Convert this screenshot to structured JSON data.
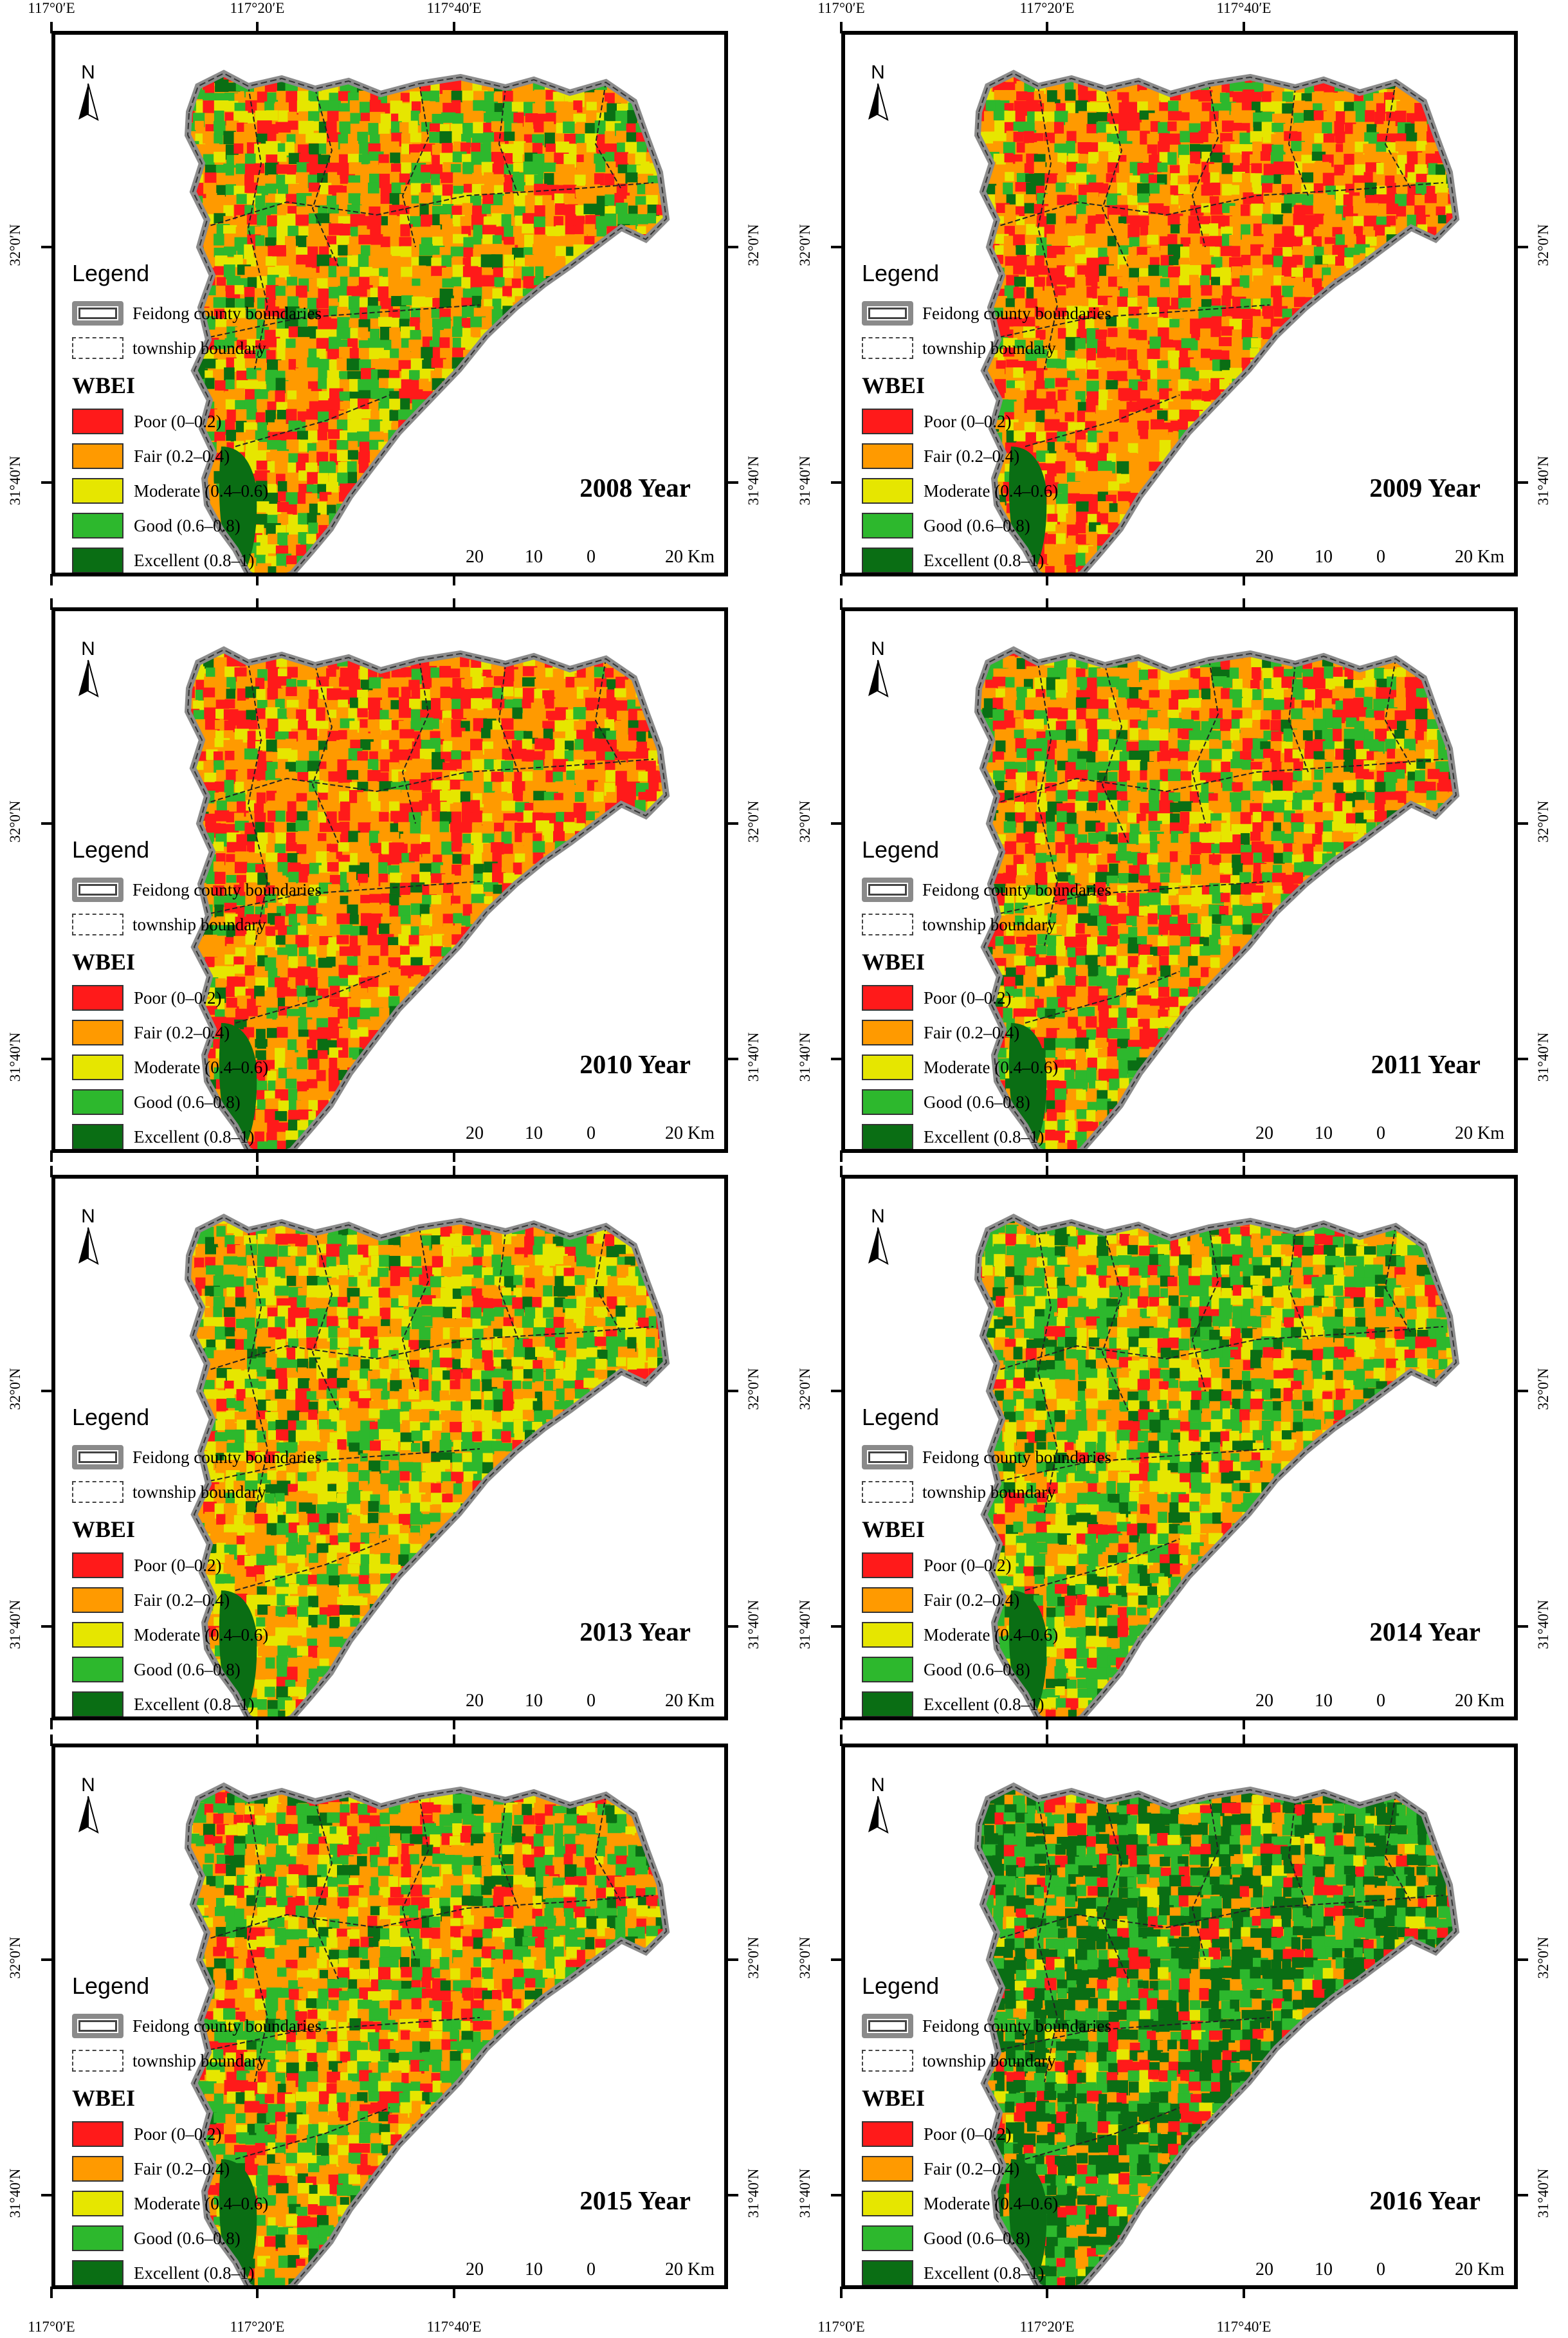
{
  "axes": {
    "top_lon": [
      "117°0′E",
      "117°20′E",
      "117°40′E"
    ],
    "bottom_lon": [
      "117°0′E",
      "117°20′E",
      "117°40′E"
    ],
    "left_lat": [
      "32°0′N",
      "31°40′N"
    ],
    "right_lat": [
      "32°0′N",
      "31°40′N"
    ]
  },
  "legend": {
    "title": "Legend",
    "county": "Feidong county boundaries",
    "township": "township boundary",
    "index_title": "WBEI",
    "classes": [
      {
        "label": "Poor (0–0.2)",
        "color": "#ff1a1a"
      },
      {
        "label": "Fair (0.2–0.4)",
        "color": "#ff9a00"
      },
      {
        "label": "Moderate (0.4–0.6)",
        "color": "#e6e600"
      },
      {
        "label": "Good (0.6–0.8)",
        "color": "#2db82d"
      },
      {
        "label": "Excellent (0.8–1)",
        "color": "#0a6e14"
      }
    ]
  },
  "north_label": "N",
  "scale": {
    "labels": [
      "20",
      "10",
      "0",
      "20 Km"
    ]
  },
  "panels": [
    {
      "year": "2008 Year",
      "mix": {
        "poor": 0.22,
        "fair": 0.3,
        "moderate": 0.18,
        "good": 0.22,
        "excellent": 0.08
      }
    },
    {
      "year": "2009 Year",
      "mix": {
        "poor": 0.3,
        "fair": 0.38,
        "moderate": 0.14,
        "good": 0.12,
        "excellent": 0.06
      }
    },
    {
      "year": "2010 Year",
      "mix": {
        "poor": 0.32,
        "fair": 0.36,
        "moderate": 0.14,
        "good": 0.12,
        "excellent": 0.06
      }
    },
    {
      "year": "2011 Year",
      "mix": {
        "poor": 0.26,
        "fair": 0.26,
        "moderate": 0.16,
        "good": 0.24,
        "excellent": 0.08
      }
    },
    {
      "year": "2013 Year",
      "mix": {
        "poor": 0.12,
        "fair": 0.28,
        "moderate": 0.26,
        "good": 0.26,
        "excellent": 0.08
      }
    },
    {
      "year": "2014 Year",
      "mix": {
        "poor": 0.1,
        "fair": 0.2,
        "moderate": 0.24,
        "good": 0.34,
        "excellent": 0.12
      }
    },
    {
      "year": "2015 Year",
      "mix": {
        "poor": 0.18,
        "fair": 0.26,
        "moderate": 0.16,
        "good": 0.3,
        "excellent": 0.1
      }
    },
    {
      "year": "2016 Year",
      "mix": {
        "poor": 0.12,
        "fair": 0.1,
        "moderate": 0.06,
        "good": 0.3,
        "excellent": 0.42
      }
    }
  ]
}
